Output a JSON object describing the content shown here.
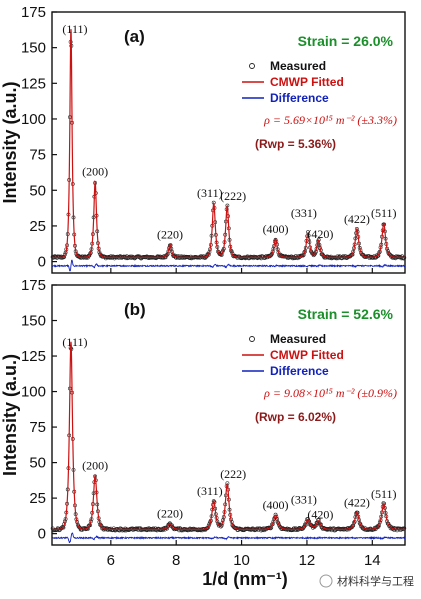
{
  "chart_data": [
    {
      "panel": "(a)",
      "type": "line",
      "ylabel": "Intensity (a.u.)",
      "xlim": [
        4.2,
        15.0
      ],
      "ylim": [
        -8,
        175
      ],
      "yticks": [
        0,
        25,
        50,
        75,
        100,
        125,
        150,
        175
      ],
      "xticks": [
        6,
        8,
        10,
        12,
        14
      ],
      "strain_text": "Strain = 26.0%",
      "legend": [
        "Measured",
        "CMWP Fitted",
        "Difference"
      ],
      "rho_text": "ρ = 5.69×10¹⁵ m⁻² (±3.3%)",
      "rwp_text": "(Rwp = 5.36%)",
      "peaks": [
        {
          "hkl": "(111)",
          "x": 4.78,
          "height": 160,
          "width": 0.055
        },
        {
          "hkl": "(200)",
          "x": 5.52,
          "height": 53,
          "width": 0.065
        },
        {
          "hkl": "(220)",
          "x": 7.81,
          "height": 9,
          "width": 0.07
        },
        {
          "hkl": "(311)",
          "x": 9.15,
          "height": 38,
          "width": 0.075
        },
        {
          "hkl": "(222)",
          "x": 9.56,
          "height": 36,
          "width": 0.075
        },
        {
          "hkl": "(400)",
          "x": 11.04,
          "height": 13,
          "width": 0.08
        },
        {
          "hkl": "(331)",
          "x": 12.03,
          "height": 17,
          "width": 0.08
        },
        {
          "hkl": "(420)",
          "x": 12.35,
          "height": 12,
          "width": 0.08
        },
        {
          "hkl": "(422)",
          "x": 13.53,
          "height": 20,
          "width": 0.085
        },
        {
          "hkl": "(511)",
          "x": 14.35,
          "height": 24,
          "width": 0.085
        }
      ],
      "background": 3,
      "difference_offset": -3
    },
    {
      "panel": "(b)",
      "type": "line",
      "ylabel": "Intensity (a.u.)",
      "xlabel": "1/d (nm⁻¹)",
      "xlim": [
        4.2,
        15.0
      ],
      "ylim": [
        -8,
        175
      ],
      "yticks": [
        0,
        25,
        50,
        75,
        100,
        125,
        150,
        175
      ],
      "xticks": [
        6,
        8,
        10,
        12,
        14
      ],
      "strain_text": "Strain = 52.6%",
      "legend": [
        "Measured",
        "CMWP Fitted",
        "Difference"
      ],
      "rho_text": "ρ = 9.08×10¹⁵ m⁻² (±0.9%)",
      "rwp_text": "(Rwp = 6.02%)",
      "peaks": [
        {
          "hkl": "(111)",
          "x": 4.78,
          "height": 132,
          "width": 0.075
        },
        {
          "hkl": "(200)",
          "x": 5.52,
          "height": 38,
          "width": 0.085
        },
        {
          "hkl": "(220)",
          "x": 7.81,
          "height": 4,
          "width": 0.09
        },
        {
          "hkl": "(311)",
          "x": 9.15,
          "height": 20,
          "width": 0.09
        },
        {
          "hkl": "(222)",
          "x": 9.56,
          "height": 32,
          "width": 0.09
        },
        {
          "hkl": "(400)",
          "x": 11.04,
          "height": 10,
          "width": 0.1
        },
        {
          "hkl": "(331)",
          "x": 12.03,
          "height": 7,
          "width": 0.1
        },
        {
          "hkl": "(420)",
          "x": 12.35,
          "height": 6,
          "width": 0.1
        },
        {
          "hkl": "(422)",
          "x": 13.53,
          "height": 12,
          "width": 0.1
        },
        {
          "hkl": "(511)",
          "x": 14.35,
          "height": 18,
          "width": 0.105
        }
      ],
      "background": 3,
      "difference_offset": -3
    }
  ],
  "colors": {
    "strain": "#1a8f2a",
    "fitted": "#cc1111",
    "measured": "#222222",
    "difference": "#1122bb",
    "rho": "#cc1111",
    "rwp": "#8b1a1a"
  },
  "watermark": "材料科学与工程"
}
